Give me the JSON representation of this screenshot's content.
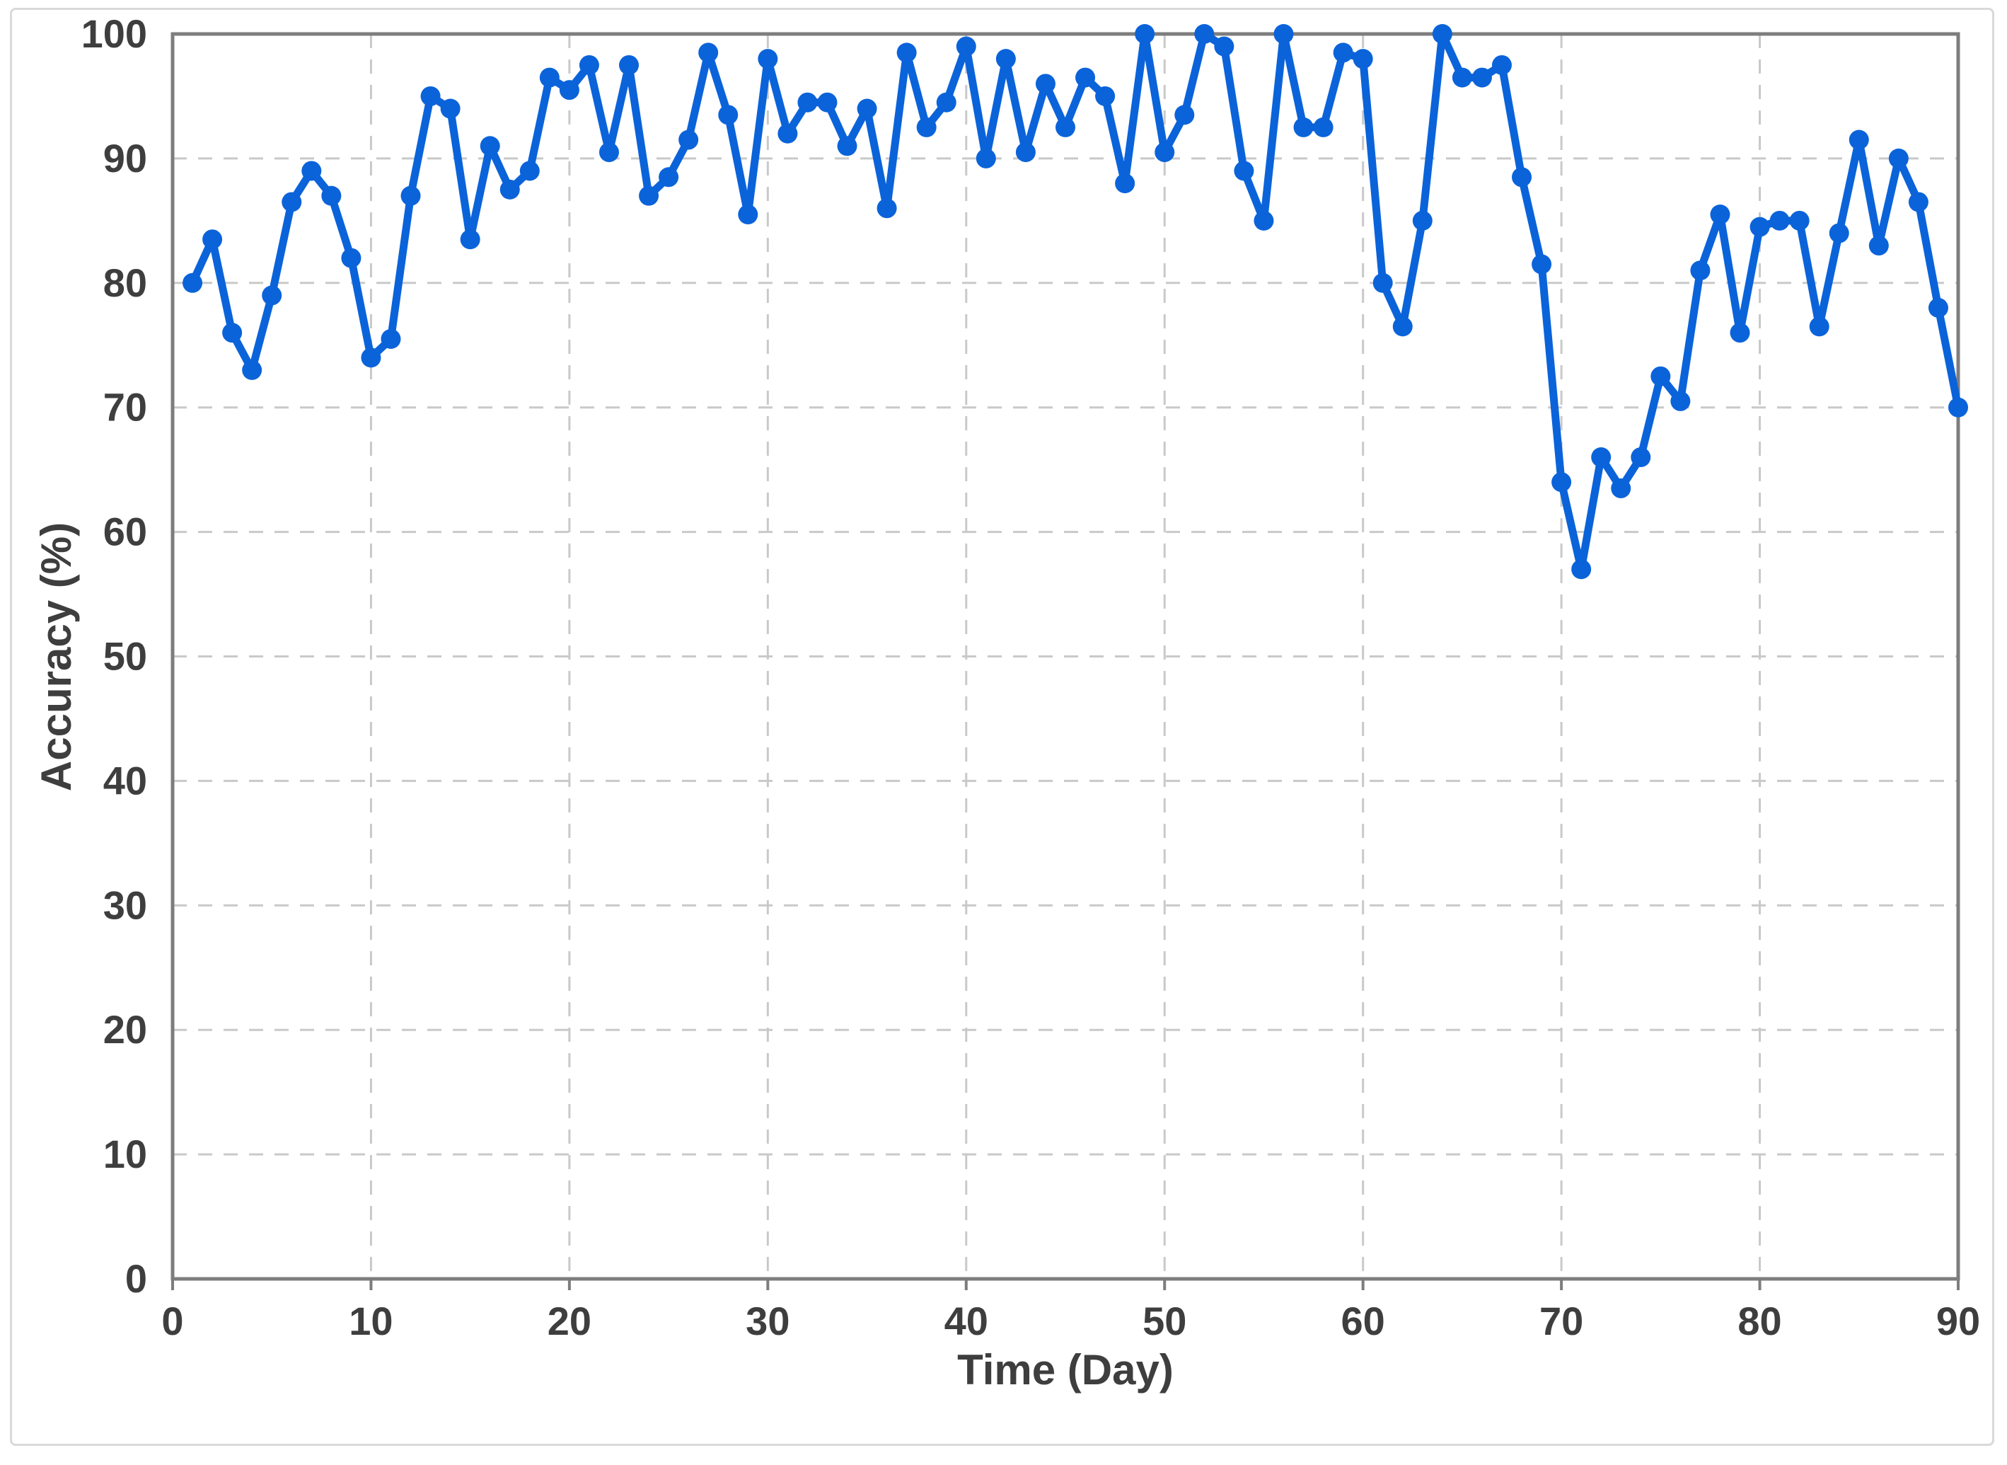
{
  "chart_data": {
    "type": "line",
    "title": "",
    "xlabel": "Time (Day)",
    "ylabel": "Accuracy (%)",
    "xlim": [
      0,
      90
    ],
    "ylim": [
      0,
      100
    ],
    "x_ticks": [
      0,
      10,
      20,
      30,
      40,
      50,
      60,
      70,
      80,
      90
    ],
    "y_ticks": [
      0,
      10,
      20,
      30,
      40,
      50,
      60,
      70,
      80,
      90,
      100
    ],
    "grid": "dashed",
    "legend_position": "none",
    "series": [
      {
        "name": "Accuracy",
        "x": [
          1,
          2,
          3,
          4,
          5,
          6,
          7,
          8,
          9,
          10,
          11,
          12,
          13,
          14,
          15,
          16,
          17,
          18,
          19,
          20,
          21,
          22,
          23,
          24,
          25,
          26,
          27,
          28,
          29,
          30,
          31,
          32,
          33,
          34,
          35,
          36,
          37,
          38,
          39,
          40,
          41,
          42,
          43,
          44,
          45,
          46,
          47,
          48,
          49,
          50,
          51,
          52,
          53,
          54,
          55,
          56,
          57,
          58,
          59,
          60,
          61,
          62,
          63,
          64,
          65,
          66,
          67,
          68,
          69,
          70,
          71,
          72,
          73,
          74,
          75,
          76,
          77,
          78,
          79,
          80,
          81,
          82,
          83,
          84,
          85,
          86,
          87,
          88,
          89,
          90
        ],
        "values": [
          80,
          83.5,
          76,
          73,
          79,
          86.5,
          89,
          87,
          82,
          74,
          75.5,
          87,
          95,
          94,
          83.5,
          91,
          87.5,
          89,
          96.5,
          95.5,
          97.5,
          90.5,
          97.5,
          87,
          88.5,
          91.5,
          98.5,
          93.5,
          85.5,
          98,
          92,
          94.5,
          94.5,
          91,
          94,
          86,
          98.5,
          92.5,
          94.5,
          99,
          90,
          98,
          90.5,
          96,
          92.5,
          96.5,
          95,
          88,
          100,
          90.5,
          93.5,
          100,
          99,
          89,
          85,
          100,
          92.5,
          92.5,
          98.5,
          98,
          80,
          76.5,
          85,
          100,
          96.5,
          96.5,
          97.5,
          88.5,
          81.5,
          64,
          57,
          66,
          63.5,
          66,
          72.5,
          70.5,
          81,
          85.5,
          76,
          84.5,
          85,
          85,
          76.5,
          84,
          91.5,
          83,
          90,
          86.5,
          78,
          70
        ]
      }
    ]
  },
  "colors": {
    "line": "#0b63da",
    "marker": "#0b63da",
    "grid": "#c9c9c9",
    "plot_border": "#7d7d7d",
    "tick_label": "#3e3e3e",
    "frame_border": "#d9d9d9",
    "background": "#ffffff"
  }
}
